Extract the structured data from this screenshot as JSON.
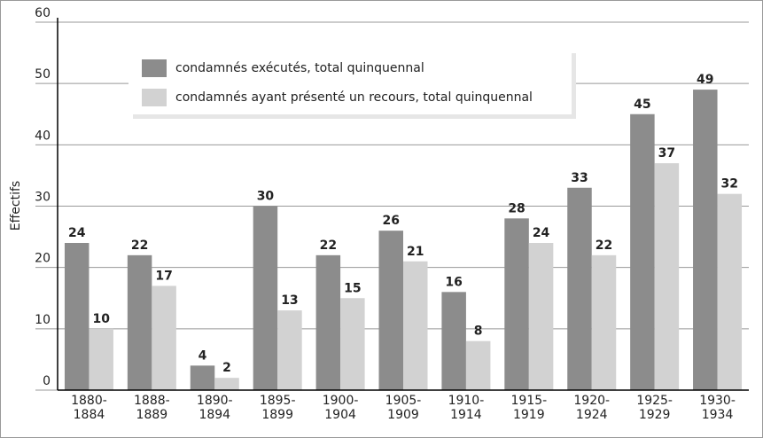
{
  "chart_data": {
    "type": "bar",
    "y_label": "Effectifs",
    "categories": [
      [
        "1880-",
        "1884"
      ],
      [
        "1888-",
        "1889"
      ],
      [
        "1890-",
        "1894"
      ],
      [
        "1895-",
        "1899"
      ],
      [
        "1900-",
        "1904"
      ],
      [
        "1905-",
        "1909"
      ],
      [
        "1910-",
        "1914"
      ],
      [
        "1915-",
        "1919"
      ],
      [
        "1920-",
        "1924"
      ],
      [
        "1925-",
        "1929"
      ],
      [
        "1930-",
        "1934"
      ]
    ],
    "series": [
      {
        "name": "condamnés exécutés, total quinquennal",
        "color": "#8c8c8c",
        "values": [
          24,
          22,
          4,
          30,
          22,
          26,
          16,
          28,
          33,
          45,
          49
        ]
      },
      {
        "name": "condamnés ayant présenté un recours, total quinquennal",
        "color": "#d2d2d2",
        "values": [
          10,
          17,
          2,
          13,
          15,
          21,
          8,
          24,
          22,
          37,
          32
        ]
      }
    ],
    "ylim": [
      0,
      60
    ],
    "yticks": [
      0,
      10,
      20,
      30,
      40,
      50,
      60
    ],
    "grid": true
  }
}
